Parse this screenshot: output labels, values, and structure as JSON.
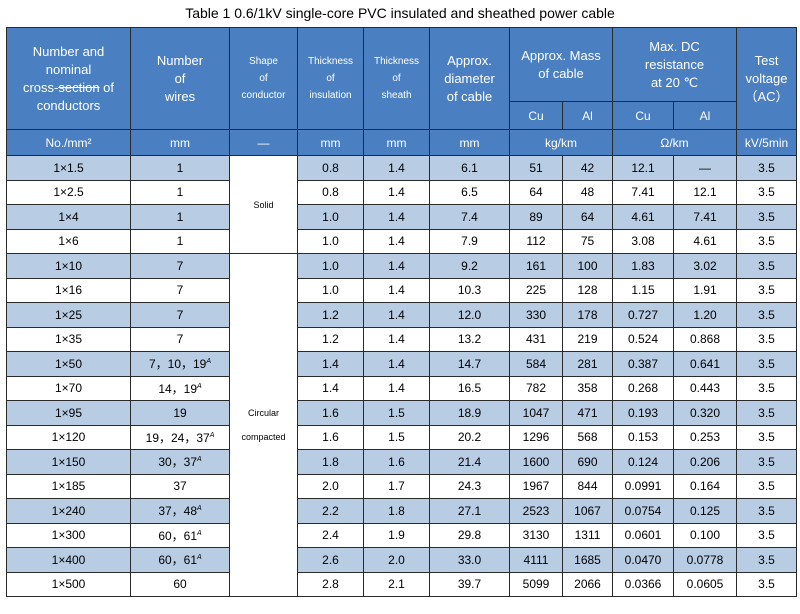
{
  "title": "Table 1    0.6/1kV single-core PVC insulated and sheathed power cable",
  "headers": {
    "conductors": {
      "l1": "Number and",
      "l2": "nominal",
      "l3a": "cross-",
      "l3b": "section",
      "l3c": " of",
      "l4": "conductors"
    },
    "wires": {
      "l1": "Number",
      "l2": "of",
      "l3": "wires"
    },
    "shape": {
      "l1": "Shape",
      "l2": "of",
      "l3": "conductor"
    },
    "insulation": {
      "l1": "Thickness",
      "l2": "of",
      "l3": "insulation"
    },
    "sheath": {
      "l1": "Thickness",
      "l2": "of",
      "l3": "sheath"
    },
    "diameter": {
      "l1": "Approx.",
      "l2": "diameter",
      "l3": "of cable"
    },
    "mass": {
      "l1": "Approx. Mass",
      "l2": "of cable"
    },
    "dc": {
      "l1": "Max. DC",
      "l2": "resistance",
      "l3": "at 20 ℃"
    },
    "voltage": {
      "l1": "Test",
      "l2": "voltage",
      "l3": "（AC）"
    },
    "cu": "Cu",
    "al": "Al"
  },
  "units": {
    "conductors": "No./mm²",
    "wires": "mm",
    "shape": "—",
    "insulation": "mm",
    "sheath": "mm",
    "diameter": "mm",
    "mass": "kg/km",
    "dc": "Ω/km",
    "voltage": "kV/5min"
  },
  "shapes": {
    "solid": "Solid",
    "circular_l1": "Circular",
    "circular_l2": "compacted"
  },
  "rows": [
    {
      "size": "1×1.5",
      "wires": "1",
      "wires_sup": "",
      "ins": "0.8",
      "sh": "1.4",
      "dia": "6.1",
      "cu": "51",
      "al": "42",
      "rcu": "12.1",
      "ral": "—",
      "v": "3.5"
    },
    {
      "size": "1×2.5",
      "wires": "1",
      "wires_sup": "",
      "ins": "0.8",
      "sh": "1.4",
      "dia": "6.5",
      "cu": "64",
      "al": "48",
      "rcu": "7.41",
      "ral": "12.1",
      "v": "3.5"
    },
    {
      "size": "1×4",
      "wires": "1",
      "wires_sup": "",
      "ins": "1.0",
      "sh": "1.4",
      "dia": "7.4",
      "cu": "89",
      "al": "64",
      "rcu": "4.61",
      "ral": "7.41",
      "v": "3.5"
    },
    {
      "size": "1×6",
      "wires": "1",
      "wires_sup": "",
      "ins": "1.0",
      "sh": "1.4",
      "dia": "7.9",
      "cu": "112",
      "al": "75",
      "rcu": "3.08",
      "ral": "4.61",
      "v": "3.5"
    },
    {
      "size": "1×10",
      "wires": "7",
      "wires_sup": "",
      "ins": "1.0",
      "sh": "1.4",
      "dia": "9.2",
      "cu": "161",
      "al": "100",
      "rcu": "1.83",
      "ral": "3.02",
      "v": "3.5"
    },
    {
      "size": "1×16",
      "wires": "7",
      "wires_sup": "",
      "ins": "1.0",
      "sh": "1.4",
      "dia": "10.3",
      "cu": "225",
      "al": "128",
      "rcu": "1.15",
      "ral": "1.91",
      "v": "3.5"
    },
    {
      "size": "1×25",
      "wires": "7",
      "wires_sup": "",
      "ins": "1.2",
      "sh": "1.4",
      "dia": "12.0",
      "cu": "330",
      "al": "178",
      "rcu": "0.727",
      "ral": "1.20",
      "v": "3.5"
    },
    {
      "size": "1×35",
      "wires": "7",
      "wires_sup": "",
      "ins": "1.2",
      "sh": "1.4",
      "dia": "13.2",
      "cu": "431",
      "al": "219",
      "rcu": "0.524",
      "ral": "0.868",
      "v": "3.5"
    },
    {
      "size": "1×50",
      "wires": "7，10，19",
      "wires_sup": "A",
      "ins": "1.4",
      "sh": "1.4",
      "dia": "14.7",
      "cu": "584",
      "al": "281",
      "rcu": "0.387",
      "ral": "0.641",
      "v": "3.5"
    },
    {
      "size": "1×70",
      "wires": "14，19",
      "wires_sup": "A",
      "ins": "1.4",
      "sh": "1.4",
      "dia": "16.5",
      "cu": "782",
      "al": "358",
      "rcu": "0.268",
      "ral": "0.443",
      "v": "3.5"
    },
    {
      "size": "1×95",
      "wires": "19",
      "wires_sup": "",
      "ins": "1.6",
      "sh": "1.5",
      "dia": "18.9",
      "cu": "1047",
      "al": "471",
      "rcu": "0.193",
      "ral": "0.320",
      "v": "3.5"
    },
    {
      "size": "1×120",
      "wires": "19，24，37",
      "wires_sup": "A",
      "ins": "1.6",
      "sh": "1.5",
      "dia": "20.2",
      "cu": "1296",
      "al": "568",
      "rcu": "0.153",
      "ral": "0.253",
      "v": "3.5"
    },
    {
      "size": "1×150",
      "wires": "30，37",
      "wires_sup": "A",
      "ins": "1.8",
      "sh": "1.6",
      "dia": "21.4",
      "cu": "1600",
      "al": "690",
      "rcu": "0.124",
      "ral": "0.206",
      "v": "3.5"
    },
    {
      "size": "1×185",
      "wires": "37",
      "wires_sup": "",
      "ins": "2.0",
      "sh": "1.7",
      "dia": "24.3",
      "cu": "1967",
      "al": "844",
      "rcu": "0.0991",
      "ral": "0.164",
      "v": "3.5"
    },
    {
      "size": "1×240",
      "wires": "37，48",
      "wires_sup": "A",
      "ins": "2.2",
      "sh": "1.8",
      "dia": "27.1",
      "cu": "2523",
      "al": "1067",
      "rcu": "0.0754",
      "ral": "0.125",
      "v": "3.5"
    },
    {
      "size": "1×300",
      "wires": "60，61",
      "wires_sup": "A",
      "ins": "2.4",
      "sh": "1.9",
      "dia": "29.8",
      "cu": "3130",
      "al": "1311",
      "rcu": "0.0601",
      "ral": "0.100",
      "v": "3.5"
    },
    {
      "size": "1×400",
      "wires": "60，61",
      "wires_sup": "A",
      "ins": "2.6",
      "sh": "2.0",
      "dia": "33.0",
      "cu": "4111",
      "al": "1685",
      "rcu": "0.0470",
      "ral": "0.0778",
      "v": "3.5"
    },
    {
      "size": "1×500",
      "wires": "60",
      "wires_sup": "",
      "ins": "2.8",
      "sh": "2.1",
      "dia": "39.7",
      "cu": "5099",
      "al": "2066",
      "rcu": "0.0366",
      "ral": "0.0605",
      "v": "3.5"
    }
  ]
}
